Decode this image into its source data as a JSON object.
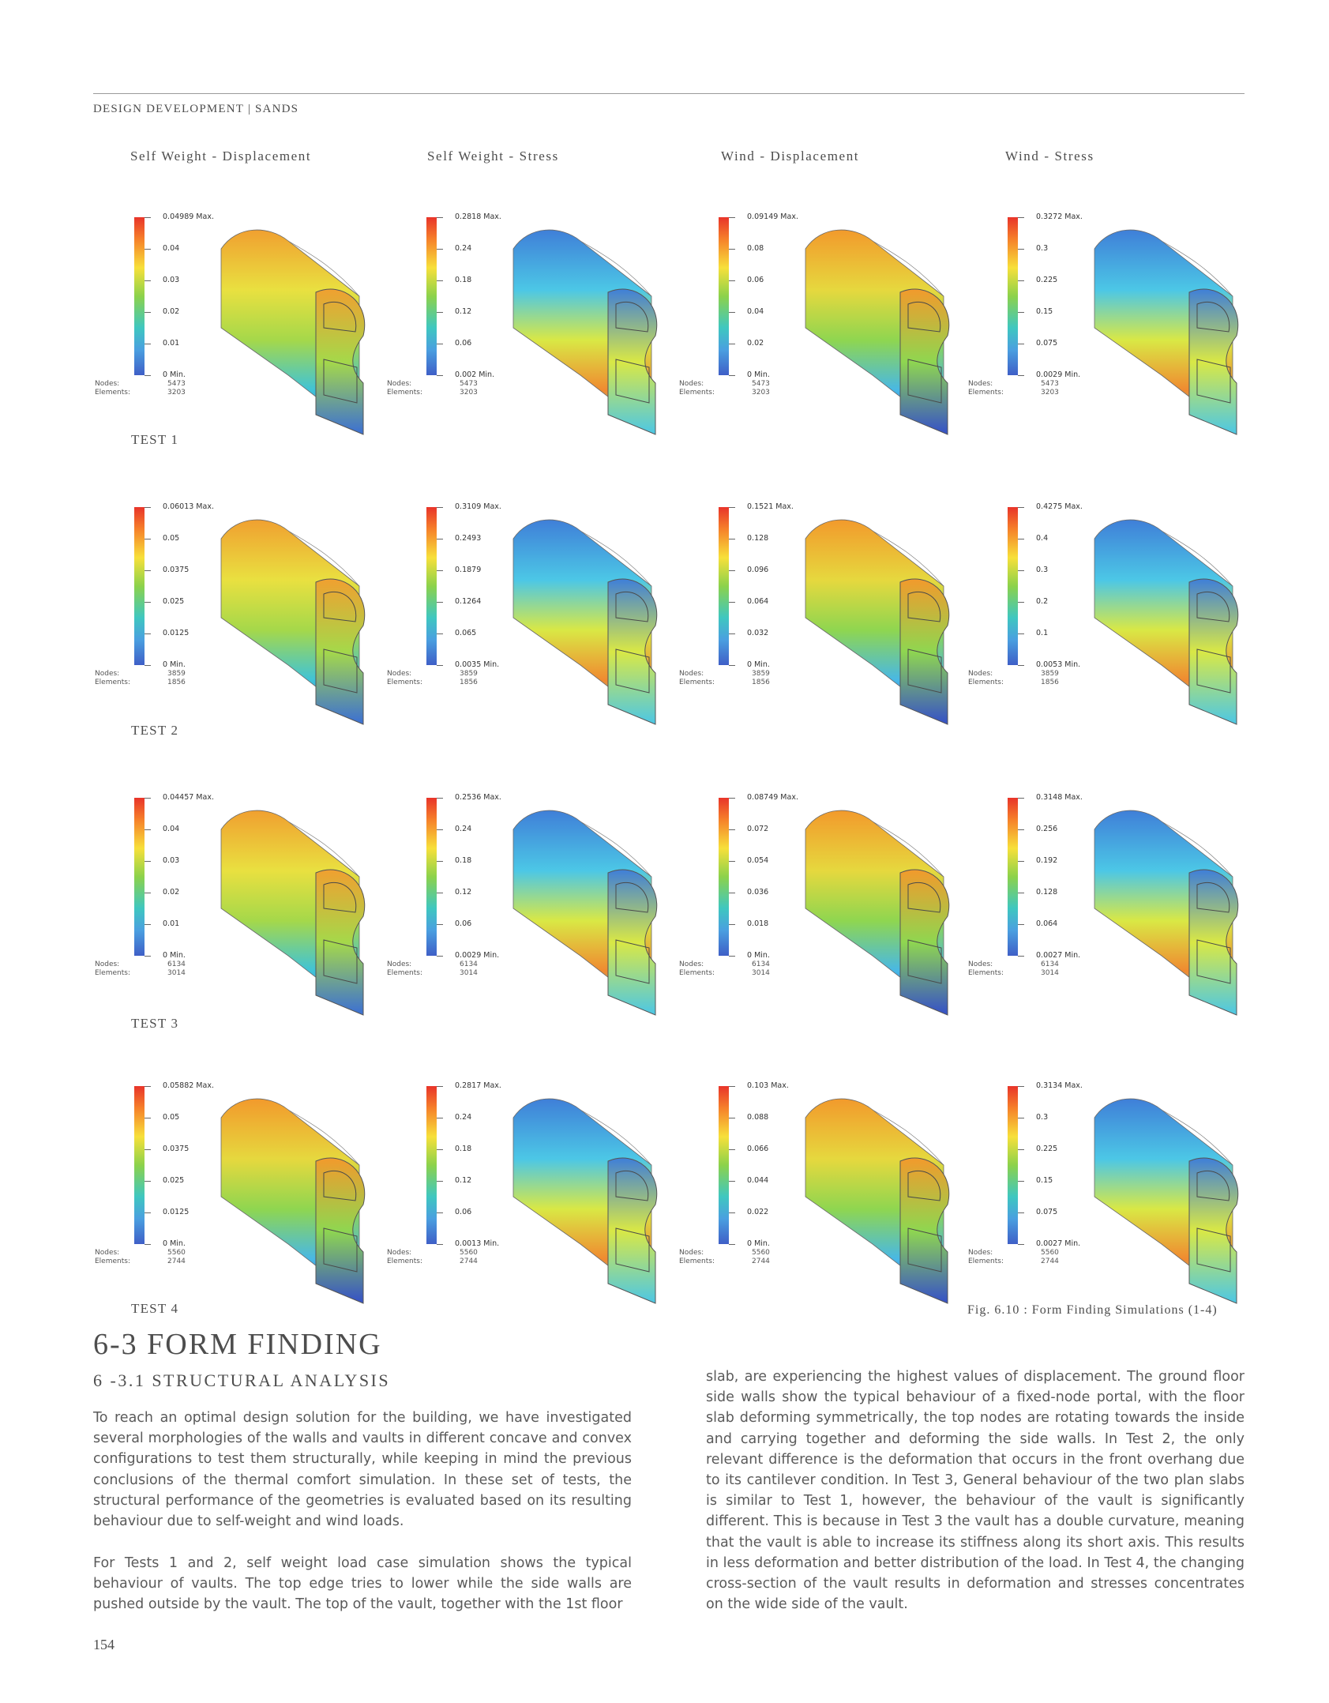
{
  "header": "DESIGN DEVELOPMENT  |  SANDS",
  "columns": [
    "Self Weight - Displacement",
    "Self Weight - Stress",
    "Wind - Displacement",
    "Wind - Stress"
  ],
  "rows": [
    {
      "label": "TEST 1",
      "panels": [
        {
          "ticks": [
            "0.04989 Max.",
            "0.04",
            "0.03",
            "0.02",
            "0.01",
            "0 Min."
          ],
          "nodes_label": "Nodes:",
          "nodes": "5473",
          "elements_label": "Elements:",
          "elements": "3203",
          "map": "disp"
        },
        {
          "ticks": [
            "0.2818 Max.",
            "0.24",
            "0.18",
            "0.12",
            "0.06",
            "0.002 Min."
          ],
          "nodes_label": "Nodes:",
          "nodes": "5473",
          "elements_label": "Elements:",
          "elements": "3203",
          "map": "stress"
        },
        {
          "ticks": [
            "0.09149 Max.",
            "0.08",
            "0.06",
            "0.04",
            "0.02",
            "0 Min."
          ],
          "nodes_label": "Nodes:",
          "nodes": "5473",
          "elements_label": "Elements:",
          "elements": "3203",
          "map": "wind"
        },
        {
          "ticks": [
            "0.3272 Max.",
            "0.3",
            "0.225",
            "0.15",
            "0.075",
            "0.0029 Min."
          ],
          "nodes_label": "Nodes:",
          "nodes": "5473",
          "elements_label": "Elements:",
          "elements": "3203",
          "map": "stress"
        }
      ]
    },
    {
      "label": "TEST 2",
      "panels": [
        {
          "ticks": [
            "0.06013 Max.",
            "0.05",
            "0.0375",
            "0.025",
            "0.0125",
            "0 Min."
          ],
          "nodes_label": "Nodes:",
          "nodes": "3859",
          "elements_label": "Elements:",
          "elements": "1856",
          "map": "disp"
        },
        {
          "ticks": [
            "0.3109 Max.",
            "0.2493",
            "0.1879",
            "0.1264",
            "0.065",
            "0.0035 Min."
          ],
          "nodes_label": "Nodes:",
          "nodes": "3859",
          "elements_label": "Elements:",
          "elements": "1856",
          "map": "stress"
        },
        {
          "ticks": [
            "0.1521 Max.",
            "0.128",
            "0.096",
            "0.064",
            "0.032",
            "0 Min."
          ],
          "nodes_label": "Nodes:",
          "nodes": "3859",
          "elements_label": "Elements:",
          "elements": "1856",
          "map": "wind"
        },
        {
          "ticks": [
            "0.4275 Max.",
            "0.4",
            "0.3",
            "0.2",
            "0.1",
            "0.0053 Min."
          ],
          "nodes_label": "Nodes:",
          "nodes": "3859",
          "elements_label": "Elements:",
          "elements": "1856",
          "map": "stress"
        }
      ]
    },
    {
      "label": "TEST 3",
      "panels": [
        {
          "ticks": [
            "0.04457 Max.",
            "0.04",
            "0.03",
            "0.02",
            "0.01",
            "0 Min."
          ],
          "nodes_label": "Nodes:",
          "nodes": "6134",
          "elements_label": "Elements:",
          "elements": "3014",
          "map": "disp"
        },
        {
          "ticks": [
            "0.2536 Max.",
            "0.24",
            "0.18",
            "0.12",
            "0.06",
            "0.0029 Min."
          ],
          "nodes_label": "Nodes:",
          "nodes": "6134",
          "elements_label": "Elements:",
          "elements": "3014",
          "map": "stress"
        },
        {
          "ticks": [
            "0.08749 Max.",
            "0.072",
            "0.054",
            "0.036",
            "0.018",
            "0 Min."
          ],
          "nodes_label": "Nodes:",
          "nodes": "6134",
          "elements_label": "Elements:",
          "elements": "3014",
          "map": "wind"
        },
        {
          "ticks": [
            "0.3148 Max.",
            "0.256",
            "0.192",
            "0.128",
            "0.064",
            "0.0027 Min."
          ],
          "nodes_label": "Nodes:",
          "nodes": "6134",
          "elements_label": "Elements:",
          "elements": "3014",
          "map": "stress"
        }
      ]
    },
    {
      "label": "TEST 4",
      "panels": [
        {
          "ticks": [
            "0.05882 Max.",
            "0.05",
            "0.0375",
            "0.025",
            "0.0125",
            "0 Min."
          ],
          "nodes_label": "Nodes:",
          "nodes": "5560",
          "elements_label": "Elements:",
          "elements": "2744",
          "map": "wind"
        },
        {
          "ticks": [
            "0.2817 Max.",
            "0.24",
            "0.18",
            "0.12",
            "0.06",
            "0.0013 Min."
          ],
          "nodes_label": "Nodes:",
          "nodes": "5560",
          "elements_label": "Elements:",
          "elements": "2744",
          "map": "stress"
        },
        {
          "ticks": [
            "0.103 Max.",
            "0.088",
            "0.066",
            "0.044",
            "0.022",
            "0 Min."
          ],
          "nodes_label": "Nodes:",
          "nodes": "5560",
          "elements_label": "Elements:",
          "elements": "2744",
          "map": "wind"
        },
        {
          "ticks": [
            "0.3134 Max.",
            "0.3",
            "0.225",
            "0.15",
            "0.075",
            "0.0027 Min."
          ],
          "nodes_label": "Nodes:",
          "nodes": "5560",
          "elements_label": "Elements:",
          "elements": "2744",
          "map": "stress"
        }
      ]
    }
  ],
  "figure_caption": "Fig. 6.10 : Form Finding Simulations (1-4)",
  "section_title": "6-3 FORM FINDING",
  "subsection_title": "6 -3.1 STRUCTURAL ANALYSIS",
  "paragraph_1": "To reach an optimal design solution for the building, we have investigated several morphologies of the walls and vaults in different concave and convex configurations to test them structurally, while keeping in mind the previous conclusions of the thermal comfort simulation. In these set of tests, the structural performance of the geometries is evaluated based on its resulting behaviour due to self-weight and wind loads.",
  "paragraph_2": "For Tests 1 and 2, self weight load case simulation shows the typical behaviour of vaults. The top edge tries to lower while the side walls are pushed outside by the vault. The top of the vault, together with the 1st floor",
  "paragraph_3": "slab, are experiencing the highest values of displacement. The ground floor side walls show the typical behaviour of a fixed-node portal, with the floor slab deforming symmetrically, the top nodes are rotating towards the inside and carrying together and deforming the side walls. In Test 2, the only relevant difference is the deformation that occurs in the front overhang due to its cantilever condition. In Test 3, General behaviour of the two plan slabs is similar to Test 1, however, the behaviour of the vault is significantly different. This is because in Test 3 the vault has a double curvature, meaning that the vault is able to increase its stiffness along its short axis. This results in less deformation and better distribution of the load. In Test 4, the changing cross-section of the vault results in deformation and stresses concentrates on the wide side of the vault.",
  "page_number": "154"
}
